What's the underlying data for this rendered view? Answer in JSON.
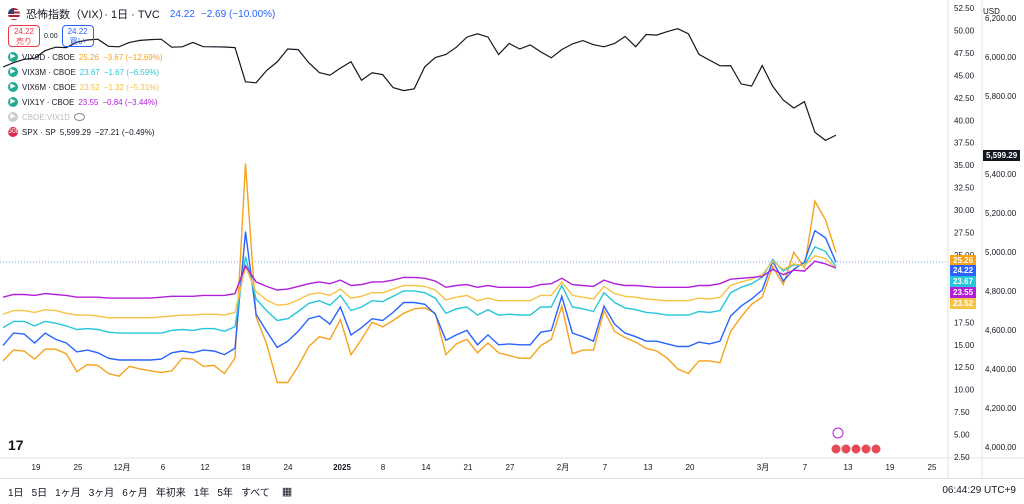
{
  "header": {
    "title": "恐怖指数（VIX）· 1日 · TVC",
    "last": "24.22",
    "change": "−2.69 (−10.00%)"
  },
  "trade": {
    "sell_price": "24.22",
    "sell_label": "売り",
    "spread": "0.00",
    "buy_price": "24.22",
    "buy_label": "買い"
  },
  "legend": [
    {
      "name": "VIX9D · CBOE",
      "value": "25.26",
      "change": "−3.67 (−12.69%)",
      "color": "#f7a21b"
    },
    {
      "name": "VIX3M · CBOE",
      "value": "23.67",
      "change": "−1.67 (−6.59%)",
      "color": "#26c6da"
    },
    {
      "name": "VIX6M · CBOE",
      "value": "23.52",
      "change": "−1.32 (−5.31%)",
      "color": "#f6c344"
    },
    {
      "name": "VIX1Y · CBOE",
      "value": "23.55",
      "change": "−0.84 (−3.44%)",
      "color": "#b21fd8"
    },
    {
      "name": "CBOE:VIX1D",
      "value": "",
      "change": "",
      "color": "#bbbbbb"
    },
    {
      "name": "SPX · SP",
      "value": "5,599.29",
      "change": "−27.21 (−0.49%)",
      "color": "#131722"
    }
  ],
  "axis_left": [
    "52.50",
    "50.00",
    "47.50",
    "45.00",
    "42.50",
    "40.00",
    "37.50",
    "35.00",
    "32.50",
    "30.00",
    "27.50",
    "25.00",
    "22.50",
    "20.00",
    "17.50",
    "15.00",
    "12.50",
    "10.00",
    "7.50",
    "5.00",
    "2.50"
  ],
  "axis_right": [
    "6,200.00",
    "6,000.00",
    "5,800.00",
    "5,400.00",
    "5,200.00",
    "5,000.00",
    "4,800.00",
    "4,600.00",
    "4,400.00",
    "4,200.00",
    "4,000.00"
  ],
  "currency": "USD",
  "badges": [
    {
      "text": "5,599.29",
      "color": "#131722"
    },
    {
      "text": "25.26",
      "color": "#f7a21b"
    },
    {
      "text": "24.22",
      "color": "#2962ff"
    },
    {
      "text": "23.67",
      "color": "#26c6da"
    },
    {
      "text": "23.55",
      "color": "#b21fd8"
    },
    {
      "text": "23.52",
      "color": "#f6c344"
    }
  ],
  "x_labels": [
    "19",
    "25",
    "12月",
    "6",
    "12",
    "18",
    "24",
    "2025",
    "8",
    "14",
    "21",
    "27",
    "2月",
    "7",
    "13",
    "20",
    "3月",
    "7",
    "13",
    "19",
    "25"
  ],
  "ranges": [
    "1日",
    "5日",
    "1ヶ月",
    "3ヶ月",
    "6ヶ月",
    "年初来",
    "1年",
    "5年",
    "すべて"
  ],
  "clock": "06:44:29 UTC+9",
  "chart_data": {
    "type": "line",
    "series": [
      {
        "name": "VIX9D · CBOE",
        "color": "#f7a21b",
        "values": [
          13.2,
          14.4,
          14.3,
          13.4,
          14.5,
          14.5,
          14.0,
          12.0,
          12.8,
          12.7,
          11.8,
          11.5,
          12.6,
          12.3,
          12.1,
          11.9,
          12.1,
          13.5,
          13.4,
          12.6,
          12.7,
          11.8,
          13.5,
          35.2,
          18.1,
          15.1,
          10.8,
          10.8,
          12.6,
          14.8,
          15.9,
          15.6,
          17.8,
          13.9,
          15.6,
          17.5,
          17.0,
          17.7,
          18.5,
          19.0,
          19.1,
          18.5,
          13.9,
          15.1,
          15.6,
          14.1,
          15.2,
          14.1,
          13.8,
          13.5,
          13.5,
          14.9,
          15.6,
          19.3,
          14.0,
          14.4,
          14.4,
          18.8,
          16.5,
          15.8,
          15.3,
          14.6,
          14.3,
          13.5,
          12.3,
          11.8,
          13.2,
          13.2,
          13.0,
          16.5,
          18.1,
          19.5,
          20.3,
          23.7,
          21.7,
          25.3,
          23.6,
          31.0,
          28.9,
          25.3
        ]
      },
      {
        "name": "VIX",
        "color": "#2962ff",
        "values": [
          14.9,
          16.3,
          16.2,
          15.2,
          16.3,
          15.6,
          15.2,
          14.2,
          14.4,
          14.1,
          13.5,
          13.3,
          13.3,
          13.3,
          13.3,
          13.4,
          14.1,
          14.3,
          14.1,
          14.4,
          14.3,
          13.9,
          14.6,
          27.6,
          18.4,
          16.5,
          14.7,
          15.4,
          16.5,
          17.9,
          18.2,
          17.3,
          19.2,
          16.1,
          16.9,
          17.9,
          17.7,
          18.6,
          19.7,
          19.7,
          19.5,
          18.4,
          15.5,
          16.1,
          16.6,
          15.0,
          16.1,
          15.0,
          15.1,
          15.0,
          15.0,
          16.4,
          16.6,
          20.4,
          16.3,
          15.9,
          15.4,
          19.3,
          17.3,
          16.3,
          15.9,
          15.4,
          15.4,
          15.1,
          14.8,
          14.8,
          15.3,
          15.1,
          15.4,
          18.2,
          19.3,
          20.1,
          21.1,
          24.3,
          22.1,
          23.4,
          24.2,
          27.7,
          26.9,
          24.2
        ]
      },
      {
        "name": "VIX3M · CBOE",
        "color": "#26c6da",
        "values": [
          16.9,
          17.6,
          17.6,
          17.1,
          17.6,
          17.4,
          17.1,
          16.7,
          16.8,
          16.7,
          16.4,
          16.3,
          16.3,
          16.3,
          16.3,
          16.3,
          16.6,
          16.7,
          16.6,
          16.8,
          16.8,
          16.5,
          17.0,
          24.8,
          20.1,
          18.8,
          17.7,
          17.9,
          18.7,
          19.6,
          19.9,
          19.4,
          20.5,
          18.8,
          19.2,
          19.9,
          19.8,
          20.4,
          21.0,
          21.0,
          20.8,
          20.2,
          18.5,
          19.0,
          19.2,
          18.3,
          18.9,
          18.3,
          18.4,
          18.3,
          18.3,
          19.2,
          19.2,
          21.6,
          19.2,
          19.0,
          18.7,
          20.8,
          19.7,
          19.1,
          18.9,
          18.6,
          18.5,
          18.3,
          18.3,
          18.3,
          18.7,
          18.6,
          18.8,
          20.8,
          21.4,
          21.8,
          22.5,
          24.5,
          23.2,
          23.9,
          23.8,
          25.9,
          25.4,
          23.7
        ]
      },
      {
        "name": "VIX6M · CBOE",
        "color": "#f6c344",
        "values": [
          18.4,
          18.8,
          18.8,
          18.6,
          18.9,
          18.8,
          18.5,
          18.3,
          18.3,
          18.2,
          18.0,
          18.0,
          18.0,
          18.0,
          18.0,
          18.1,
          18.2,
          18.3,
          18.3,
          18.4,
          18.4,
          18.3,
          18.6,
          23.7,
          20.9,
          20.0,
          19.4,
          19.5,
          20.0,
          20.6,
          20.8,
          20.5,
          21.2,
          20.2,
          20.4,
          20.8,
          20.8,
          21.2,
          21.6,
          21.6,
          21.5,
          21.1,
          20.0,
          20.3,
          20.5,
          19.9,
          20.2,
          19.9,
          19.9,
          19.9,
          19.9,
          20.5,
          20.5,
          22.0,
          20.5,
          20.3,
          20.1,
          21.5,
          20.7,
          20.4,
          20.3,
          20.1,
          20.0,
          19.9,
          19.9,
          19.9,
          20.2,
          20.1,
          20.3,
          21.6,
          22.0,
          22.3,
          22.8,
          24.3,
          23.4,
          24.0,
          23.8,
          24.9,
          24.6,
          23.5
        ]
      },
      {
        "name": "VIX1Y · CBOE",
        "color": "#b21fd8",
        "values": [
          20.3,
          20.6,
          20.6,
          20.5,
          20.7,
          20.6,
          20.5,
          20.3,
          20.3,
          20.3,
          20.2,
          20.2,
          20.2,
          20.2,
          20.2,
          20.3,
          20.4,
          20.4,
          20.4,
          20.5,
          20.5,
          20.5,
          20.7,
          23.8,
          22.0,
          21.5,
          21.1,
          21.2,
          21.5,
          21.8,
          22.0,
          21.8,
          22.2,
          21.6,
          21.7,
          22.0,
          22.0,
          22.2,
          22.5,
          22.5,
          22.4,
          22.1,
          21.4,
          21.6,
          21.7,
          21.4,
          21.6,
          21.4,
          21.4,
          21.4,
          21.4,
          21.7,
          21.8,
          22.4,
          21.7,
          21.6,
          21.5,
          22.2,
          21.8,
          21.6,
          21.6,
          21.5,
          21.4,
          21.4,
          21.4,
          21.4,
          21.6,
          21.6,
          21.8,
          22.3,
          22.4,
          22.5,
          22.6,
          23.4,
          22.8,
          23.3,
          23.2,
          24.3,
          24.0,
          23.55
        ]
      },
      {
        "name": "SPX · SP",
        "color": "#131722",
        "axis": "right",
        "values": [
          5948,
          5970,
          5987,
          5993,
          6032,
          6049,
          6047,
          6075,
          6086,
          6090,
          6054,
          6051,
          6074,
          6084,
          6088,
          6090,
          6049,
          6051,
          6074,
          6052,
          6051,
          6050,
          6047,
          5872,
          5867,
          5930,
          5974,
          6040,
          6037,
          5970,
          5919,
          5906,
          5942,
          5975,
          5880,
          5918,
          5909,
          5842,
          5827,
          5836,
          5949,
          5996,
          6012,
          6049,
          6101,
          6118,
          6101,
          6012,
          6068,
          6040,
          6061,
          6025,
          5995,
          6037,
          6066,
          6083,
          6062,
          6051,
          6068,
          6104,
          6052,
          6114,
          6111,
          6129,
          6144,
          6118,
          6013,
          5983,
          5954,
          5955,
          5861,
          5850,
          5955,
          5849,
          5778,
          5738,
          5770,
          5614,
          5572,
          5599
        ]
      }
    ],
    "ylim": [
      2.5,
      52.5
    ],
    "y2lim": [
      3950,
      6250
    ]
  }
}
